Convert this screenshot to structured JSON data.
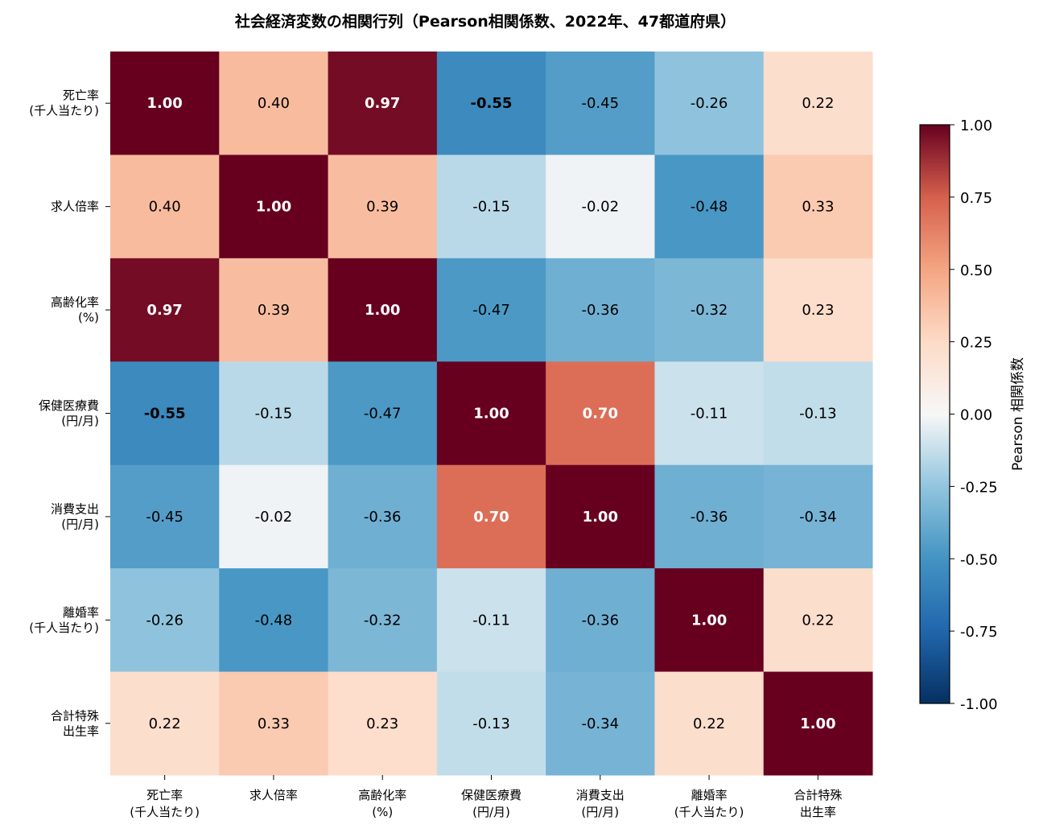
{
  "chart_data": {
    "type": "heatmap",
    "title": "社会経済変数の相関行列（Pearson相関係数、2022年、47都道府県）",
    "row_labels": [
      [
        "死亡率",
        "(千人当たり)"
      ],
      [
        "求人倍率"
      ],
      [
        "高齢化率",
        "(%)"
      ],
      [
        "保健医療費",
        "(円/月)"
      ],
      [
        "消費支出",
        "(円/月)"
      ],
      [
        "離婚率",
        "(千人当たり)"
      ],
      [
        "合計特殊",
        "出生率"
      ]
    ],
    "col_labels": [
      [
        "死亡率",
        "(千人当たり)"
      ],
      [
        "求人倍率"
      ],
      [
        "高齢化率",
        "(%)"
      ],
      [
        "保健医療費",
        "(円/月)"
      ],
      [
        "消費支出",
        "(円/月)"
      ],
      [
        "離婚率",
        "(千人当たり)"
      ],
      [
        "合計特殊",
        "出生率"
      ]
    ],
    "values": [
      [
        1.0,
        0.4,
        0.97,
        -0.55,
        -0.45,
        -0.26,
        0.22
      ],
      [
        0.4,
        1.0,
        0.39,
        -0.15,
        -0.02,
        -0.48,
        0.33
      ],
      [
        0.97,
        0.39,
        1.0,
        -0.47,
        -0.36,
        -0.32,
        0.23
      ],
      [
        -0.55,
        -0.15,
        -0.47,
        1.0,
        0.7,
        -0.11,
        -0.13
      ],
      [
        -0.45,
        -0.02,
        -0.36,
        0.7,
        1.0,
        -0.36,
        -0.34
      ],
      [
        -0.26,
        -0.48,
        -0.32,
        -0.11,
        -0.36,
        1.0,
        0.22
      ],
      [
        0.22,
        0.33,
        0.23,
        -0.13,
        -0.34,
        0.22,
        1.0
      ]
    ],
    "value_labels": [
      [
        "1.00",
        "0.40",
        "0.97",
        "-0.55",
        "-0.45",
        "-0.26",
        "0.22"
      ],
      [
        "0.40",
        "1.00",
        "0.39",
        "-0.15",
        "-0.02",
        "-0.48",
        "0.33"
      ],
      [
        "0.97",
        "0.39",
        "1.00",
        "-0.47",
        "-0.36",
        "-0.32",
        "0.23"
      ],
      [
        "-0.55",
        "-0.15",
        "-0.47",
        "1.00",
        "0.70",
        "-0.11",
        "-0.13"
      ],
      [
        "-0.45",
        "-0.02",
        "-0.36",
        "0.70",
        "1.00",
        "-0.36",
        "-0.34"
      ],
      [
        "-0.26",
        "-0.48",
        "-0.32",
        "-0.11",
        "-0.36",
        "1.00",
        "0.22"
      ],
      [
        "0.22",
        "0.33",
        "0.23",
        "-0.13",
        "-0.34",
        "0.22",
        "1.00"
      ]
    ],
    "bold_threshold": 0.5,
    "colormap": "RdBu_r",
    "vmin": -1,
    "vmax": 1,
    "colorbar": {
      "label": "Pearson 相関係数",
      "ticks": [
        1.0,
        0.75,
        0.5,
        0.25,
        0.0,
        -0.25,
        -0.5,
        -0.75,
        -1.0
      ],
      "tick_labels": [
        "1.00",
        "0.75",
        "0.50",
        "0.25",
        "0.00",
        "-0.25",
        "-0.50",
        "-0.75",
        "-1.00"
      ]
    }
  },
  "colors": {
    "text_dark": "#000000",
    "text_light": "#ffffff"
  }
}
